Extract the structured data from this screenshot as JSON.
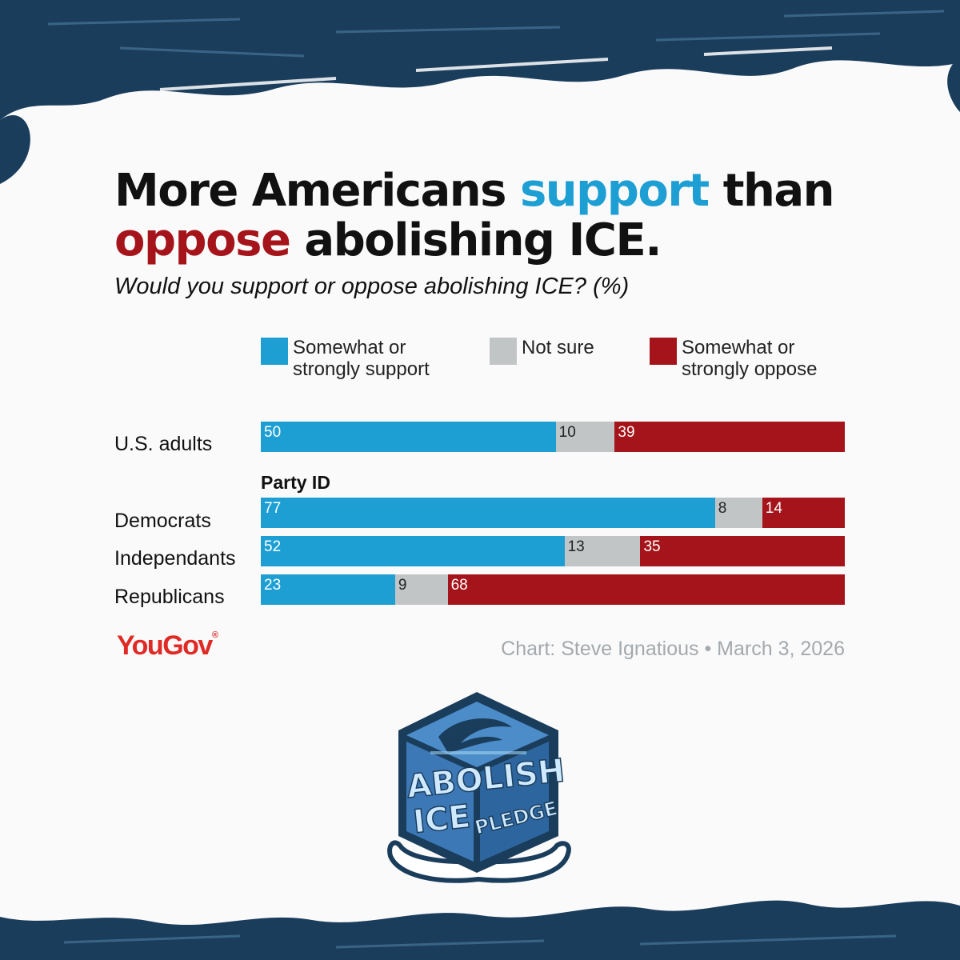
{
  "chart_data": {
    "type": "bar",
    "orientation": "horizontal",
    "stacked": true,
    "title_parts": [
      "More Americans ",
      "support",
      " than ",
      "oppose",
      " abolishing ICE."
    ],
    "subtitle": "Would you support or oppose abolishing ICE? (%)",
    "legend": [
      {
        "label": "Somewhat or\nstrongly support",
        "color": "#1e9fd4"
      },
      {
        "label": "Not sure",
        "color": "#c2c5c6"
      },
      {
        "label": "Somewhat or\nstrongly oppose",
        "color": "#a5141a"
      }
    ],
    "group_label": "Party ID",
    "rows": [
      {
        "label": "U.S. adults",
        "values": [
          50,
          10,
          39
        ]
      },
      {
        "label": "Democrats",
        "values": [
          77,
          8,
          14
        ]
      },
      {
        "label": "Independants",
        "values": [
          52,
          13,
          35
        ]
      },
      {
        "label": "Republicans",
        "values": [
          23,
          9,
          68
        ]
      }
    ],
    "source": "YouGov",
    "credit": "Chart: Steve Ignatious • March 3, 2026"
  },
  "logo": {
    "line1": "ABOLISH",
    "line2": "ICE",
    "line3": "PLEDGE"
  },
  "colors": {
    "support": "#1e9fd4",
    "not_sure": "#c2c5c6",
    "oppose": "#a5141a",
    "border": "#1b3d5c"
  }
}
